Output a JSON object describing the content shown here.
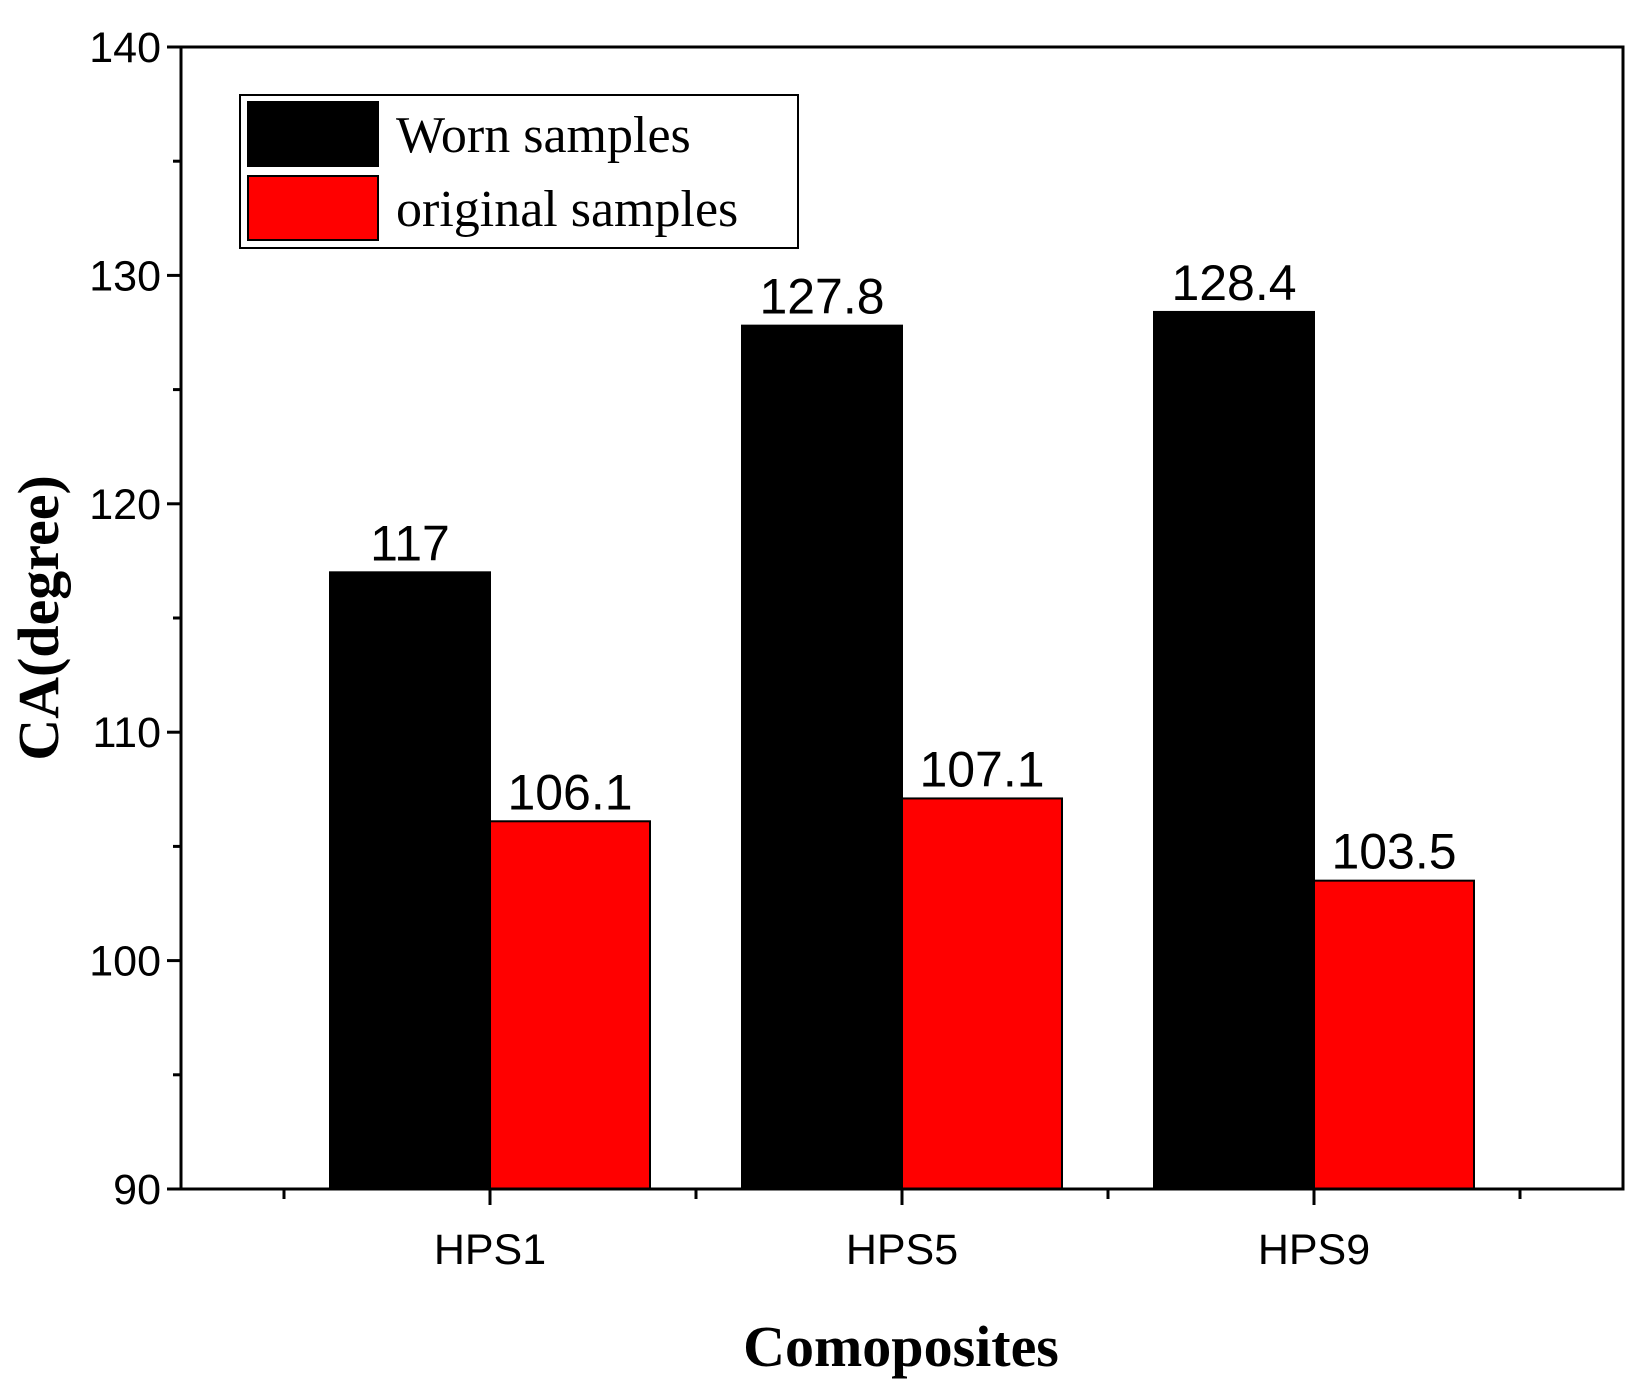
{
  "chart_data": {
    "type": "bar",
    "xlabel": "Comoposites",
    "ylabel": "CA(degree)",
    "categories": [
      "HPS1",
      "HPS5",
      "HPS9"
    ],
    "series": [
      {
        "name": "Worn samples",
        "values": [
          117,
          127.8,
          128.4
        ],
        "color": "#000000"
      },
      {
        "name": "original samples",
        "values": [
          106.1,
          107.1,
          103.5
        ],
        "color": "#ff0000"
      }
    ],
    "value_labels": [
      [
        "117",
        "127.8",
        "128.4"
      ],
      [
        "106.1",
        "107.1",
        "103.5"
      ]
    ],
    "ylim": [
      90,
      140
    ],
    "yticks": [
      "90",
      "100",
      "110",
      "120",
      "130",
      "140"
    ],
    "ytick_values": [
      90,
      100,
      110,
      120,
      130,
      140
    ],
    "grid": false,
    "legend_position": "top-left"
  }
}
